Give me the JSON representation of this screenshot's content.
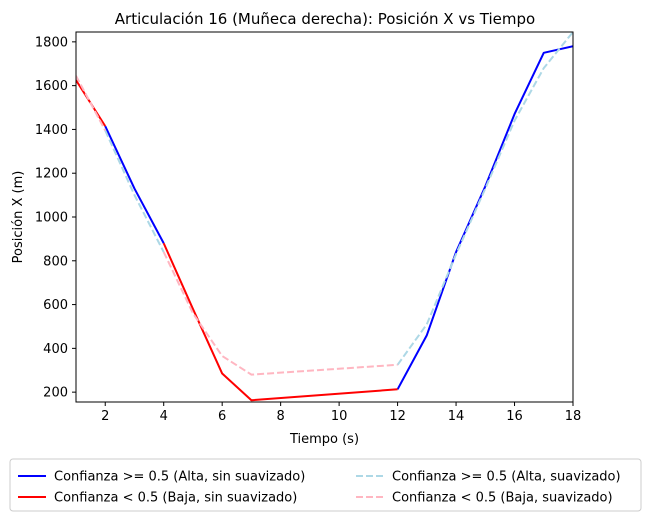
{
  "chart_data": {
    "type": "line",
    "title": "Articulación 16 (Muñeca derecha): Posición X vs Tiempo",
    "xlabel": "Tiempo (s)",
    "ylabel": "Posición X (m)",
    "xlim": [
      1,
      18
    ],
    "ylim": [
      155,
      1845
    ],
    "xticks": [
      2,
      4,
      6,
      8,
      10,
      12,
      14,
      16,
      18
    ],
    "yticks": [
      200,
      400,
      600,
      800,
      1000,
      1200,
      1400,
      1600,
      1800
    ],
    "grid": false,
    "legend_placement": "bottom-center",
    "series": [
      {
        "name": "Confianza >= 0.5 (Alta, sin suavizado)",
        "color": "#0000ff",
        "dash": "solid",
        "segments": [
          [
            [
              2,
              1415
            ],
            [
              3,
              1130
            ],
            [
              4,
              880
            ]
          ],
          [
            [
              12,
              213
            ],
            [
              13,
              460
            ],
            [
              14,
              840
            ],
            [
              15,
              1140
            ],
            [
              16,
              1470
            ],
            [
              17,
              1750
            ],
            [
              18,
              1780
            ]
          ]
        ]
      },
      {
        "name": "Confianza < 0.5 (Baja, sin suavizado)",
        "color": "#ff0000",
        "dash": "solid",
        "segments": [
          [
            [
              1,
              1625
            ],
            [
              2,
              1415
            ]
          ],
          [
            [
              4,
              880
            ],
            [
              5,
              580
            ],
            [
              6,
              285
            ],
            [
              7,
              163
            ],
            [
              12,
              213
            ]
          ]
        ]
      },
      {
        "name": "Confianza >= 0.5 (Alta, suavizado)",
        "color": "#add8e6",
        "dash": "dashed",
        "segments": [
          [
            [
              2,
              1395
            ],
            [
              3,
              1100
            ],
            [
              4,
              840
            ]
          ],
          [
            [
              12,
              325
            ],
            [
              13,
              510
            ],
            [
              14,
              830
            ],
            [
              15,
              1130
            ],
            [
              16,
              1440
            ],
            [
              17,
              1680
            ],
            [
              18,
              1845
            ]
          ]
        ]
      },
      {
        "name": "Confianza < 0.5 (Baja, suavizado)",
        "color": "#ffb6c1",
        "dash": "dashed",
        "segments": [
          [
            [
              1,
              1645
            ],
            [
              2,
              1395
            ]
          ],
          [
            [
              4,
              840
            ],
            [
              5,
              560
            ],
            [
              6,
              365
            ],
            [
              7,
              280
            ],
            [
              12,
              325
            ]
          ]
        ]
      }
    ]
  }
}
